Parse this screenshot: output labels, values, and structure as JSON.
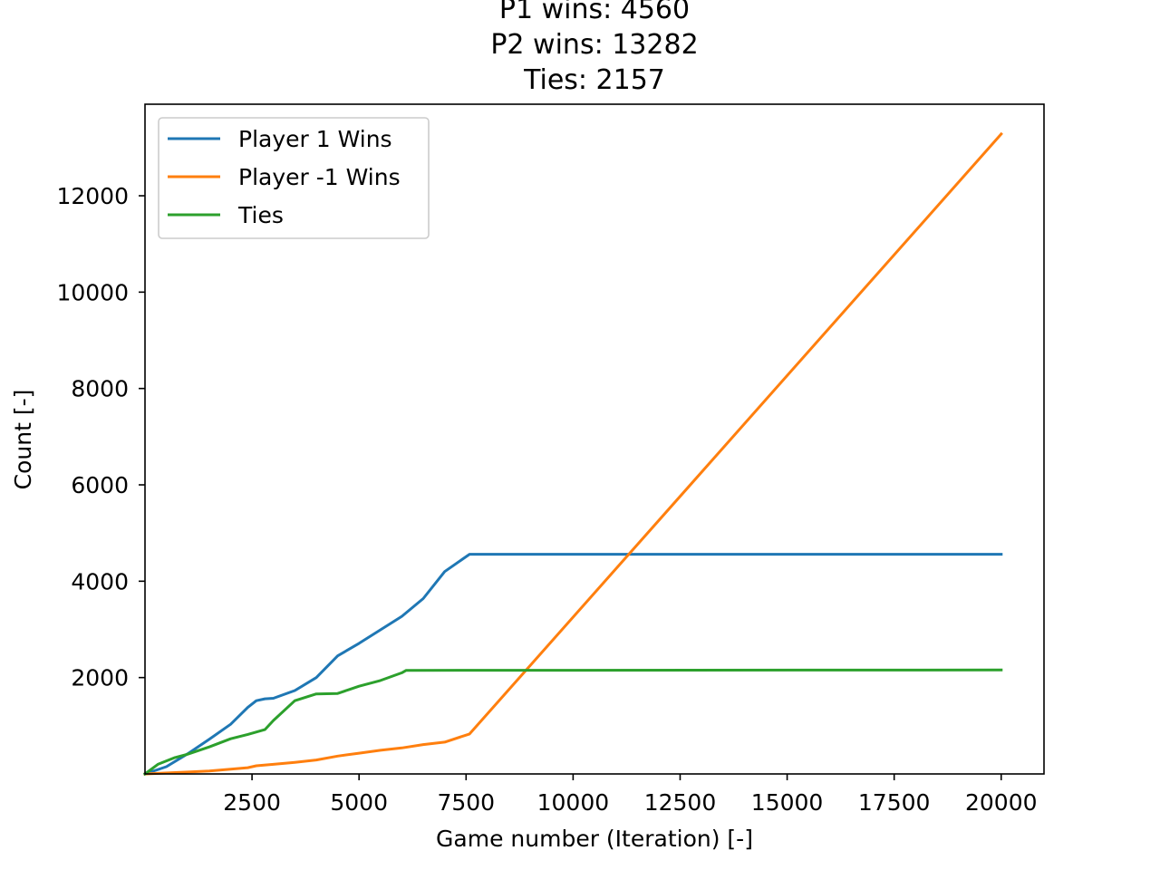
{
  "chart_data": {
    "type": "line",
    "title": [
      "P1 wins: 4560",
      "P2 wins: 13282",
      "Ties: 2157"
    ],
    "xlabel": "Game number (Iteration) [-]",
    "ylabel": "Count [-]",
    "xlim": [
      0,
      21000
    ],
    "ylim": [
      0,
      13900
    ],
    "xticks": [
      2500,
      5000,
      7500,
      10000,
      12500,
      15000,
      17500,
      20000
    ],
    "xtick_labels": [
      "2500",
      "5000",
      "7500",
      "10000",
      "12500",
      "15000",
      "17500",
      "20000"
    ],
    "yticks": [
      2000,
      4000,
      6000,
      8000,
      10000,
      12000
    ],
    "ytick_labels": [
      "2000",
      "4000",
      "6000",
      "8000",
      "10000",
      "12000"
    ],
    "grid": false,
    "legend_position": "top-left",
    "series": [
      {
        "name": "Player 1 Wins",
        "color": "#1f77b4",
        "points": [
          [
            0,
            0
          ],
          [
            500,
            150
          ],
          [
            1000,
            420
          ],
          [
            1500,
            720
          ],
          [
            2000,
            1030
          ],
          [
            2400,
            1380
          ],
          [
            2600,
            1520
          ],
          [
            2800,
            1560
          ],
          [
            3000,
            1570
          ],
          [
            3500,
            1730
          ],
          [
            4000,
            2000
          ],
          [
            4500,
            2450
          ],
          [
            5000,
            2710
          ],
          [
            5500,
            2990
          ],
          [
            6000,
            3270
          ],
          [
            6500,
            3640
          ],
          [
            7000,
            4200
          ],
          [
            7580,
            4560
          ],
          [
            20000,
            4560
          ]
        ]
      },
      {
        "name": "Player -1 Wins",
        "color": "#ff7f0e",
        "points": [
          [
            0,
            0
          ],
          [
            1000,
            40
          ],
          [
            1500,
            60
          ],
          [
            2000,
            100
          ],
          [
            2400,
            130
          ],
          [
            2600,
            170
          ],
          [
            3000,
            200
          ],
          [
            3500,
            240
          ],
          [
            4000,
            290
          ],
          [
            4500,
            370
          ],
          [
            5000,
            430
          ],
          [
            5500,
            490
          ],
          [
            6000,
            540
          ],
          [
            6500,
            610
          ],
          [
            7000,
            660
          ],
          [
            7580,
            830
          ],
          [
            20000,
            13282
          ]
        ]
      },
      {
        "name": "Ties",
        "color": "#2ca02c",
        "points": [
          [
            0,
            0
          ],
          [
            300,
            200
          ],
          [
            700,
            340
          ],
          [
            1000,
            410
          ],
          [
            1500,
            560
          ],
          [
            2000,
            730
          ],
          [
            2400,
            820
          ],
          [
            2800,
            920
          ],
          [
            3000,
            1110
          ],
          [
            3500,
            1520
          ],
          [
            4000,
            1660
          ],
          [
            4500,
            1670
          ],
          [
            5000,
            1820
          ],
          [
            5500,
            1940
          ],
          [
            6000,
            2100
          ],
          [
            6100,
            2150
          ],
          [
            20000,
            2157
          ]
        ]
      }
    ]
  }
}
